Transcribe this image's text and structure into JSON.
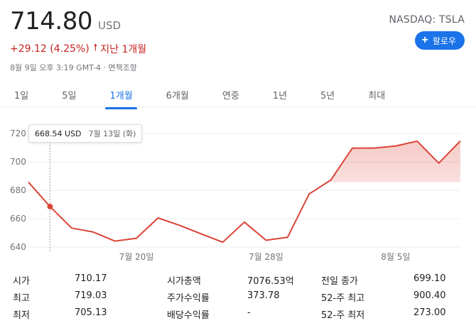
{
  "quote": {
    "price": "714.80",
    "currency": "USD",
    "change": "+29.12 (4.25%)",
    "period": "지난 1개월",
    "timestamp": "8월 9일 오후 3:19 GMT-4 · 면책조항",
    "ticker": "NASDAQ: TSLA",
    "follow_label": "팔로우",
    "change_color": "#c5221f",
    "accent_color": "#1a73e8"
  },
  "tabs": [
    "1일",
    "5일",
    "1개월",
    "6개월",
    "연중",
    "1년",
    "5년",
    "최대"
  ],
  "active_tab": "1개월",
  "tooltip": {
    "value": "668.54 USD",
    "date": "7월 13일 (화)"
  },
  "chart_data": {
    "type": "area",
    "line_color": "#db4437",
    "y_ticks": [
      640,
      660,
      680,
      700,
      720
    ],
    "ylim": [
      636,
      728
    ],
    "x_ticks": [
      {
        "label": "7월 20일",
        "index": 5
      },
      {
        "label": "7월 28일",
        "index": 11
      },
      {
        "label": "8월 5일",
        "index": 17
      }
    ],
    "dates": [
      "7월 9일",
      "7월 13일",
      "7월 14일",
      "7월 15일",
      "7월 16일",
      "7월 19일",
      "7월 20일",
      "7월 21일",
      "7월 22일",
      "7월 23일",
      "7월 26일",
      "7월 27일",
      "7월 28일",
      "7월 29일",
      "7월 30일",
      "8월 2일",
      "8월 3일",
      "8월 4일",
      "8월 5일",
      "8월 6일",
      "8월 9일"
    ],
    "values": [
      685.7,
      668.54,
      653.4,
      650.6,
      644.2,
      646.2,
      660.5,
      655.3,
      649.3,
      643.4,
      657.6,
      644.8,
      646.9,
      677.4,
      687.2,
      709.7,
      709.7,
      711.2,
      714.6,
      699.1,
      714.8
    ],
    "highlight_index": 1,
    "previous_close": 685.68
  },
  "stats": [
    {
      "label": "시가",
      "value": "710.17"
    },
    {
      "label": "시가총액",
      "value": "7076.53억"
    },
    {
      "label": "전일 종가",
      "value": "699.10"
    },
    {
      "label": "최고",
      "value": "719.03"
    },
    {
      "label": "주가수익률",
      "value": "373.78"
    },
    {
      "label": "52-주 최고",
      "value": "900.40"
    },
    {
      "label": "최저",
      "value": "705.13"
    },
    {
      "label": "배당수익률",
      "value": "-"
    },
    {
      "label": "52-주 최저",
      "value": "273.00"
    }
  ]
}
